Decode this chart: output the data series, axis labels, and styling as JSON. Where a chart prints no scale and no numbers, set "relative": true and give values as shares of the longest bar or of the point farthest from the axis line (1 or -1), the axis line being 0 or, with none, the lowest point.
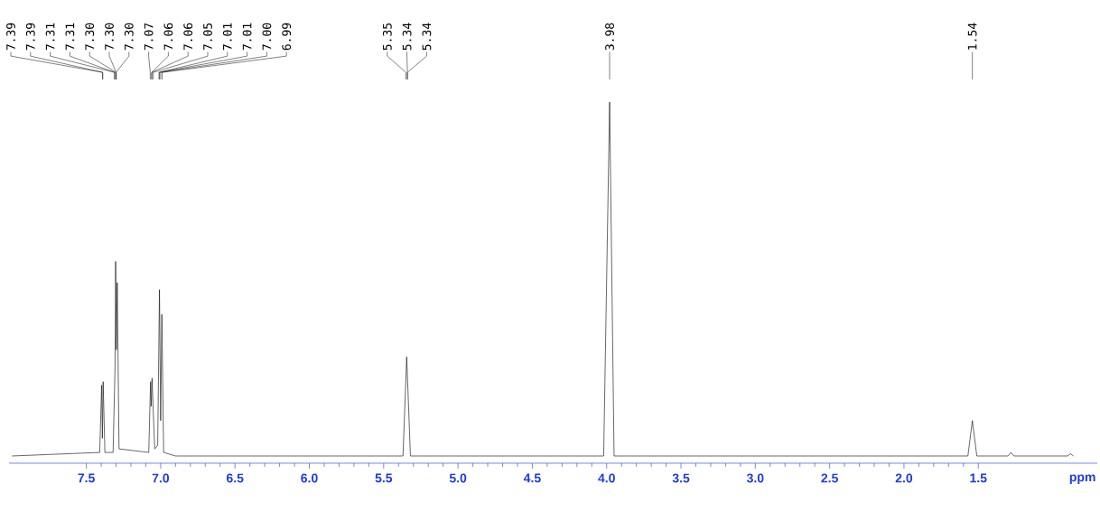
{
  "chart_data": {
    "type": "line",
    "relative": true,
    "xlabel": "ppm",
    "xlim": [
      8.02,
      0.7
    ],
    "xticks": [
      7.5,
      {
        "value": 7.0,
        "label": "7.0"
      },
      6.5,
      {
        "value": 6.0,
        "label": "6.0"
      },
      5.5,
      {
        "value": 5.0,
        "label": "5.0"
      },
      4.5,
      {
        "value": 4.0,
        "label": "4.0"
      },
      3.5,
      {
        "value": 3.0,
        "label": "3.0"
      },
      2.5,
      {
        "value": 2.0,
        "label": "2.0"
      },
      1.5
    ],
    "marker": "none",
    "line_style": "solid",
    "tick_labels": "x",
    "series": [
      {
        "color": "#000000",
        "x": [
          8.0,
          7.41,
          7.397,
          7.392,
          7.387,
          7.375,
          7.32,
          7.307,
          7.303,
          7.298,
          7.292,
          7.28,
          7.08,
          7.068,
          7.064,
          7.058,
          7.052,
          7.04,
          7.02,
          7.008,
          7.0,
          6.992,
          6.98,
          6.9,
          5.37,
          5.345,
          5.32,
          4.02,
          3.98,
          3.95,
          1.57,
          1.54,
          1.51,
          1.3,
          1.28,
          1.26,
          0.9,
          0.88,
          0.86
        ],
        "values": [
          0,
          0.01,
          0.2,
          0.05,
          0.21,
          0.01,
          0.01,
          0.25,
          0.55,
          0.3,
          0.49,
          0.02,
          0.01,
          0.21,
          0.14,
          0.22,
          0.15,
          0.02,
          0.03,
          0.47,
          0.1,
          0.4,
          0.01,
          0,
          0,
          0.28,
          0,
          0,
          1,
          0,
          0,
          0.1,
          0,
          0,
          0.01,
          0,
          0,
          0.006,
          0
        ]
      }
    ],
    "annotations": [
      {
        "text": "7.39",
        "x": 7.39
      },
      {
        "text": "7.39",
        "x": 7.39
      },
      {
        "text": "7.31",
        "x": 7.31
      },
      {
        "text": "7.31",
        "x": 7.31
      },
      {
        "text": "7.30",
        "x": 7.3
      },
      {
        "text": "7.30",
        "x": 7.3
      },
      {
        "text": "7.30",
        "x": 7.3
      },
      {
        "text": "7.07",
        "x": 7.07
      },
      {
        "text": "7.06",
        "x": 7.06
      },
      {
        "text": "7.06",
        "x": 7.06
      },
      {
        "text": "7.05",
        "x": 7.05
      },
      {
        "text": "7.01",
        "x": 7.01
      },
      {
        "text": "7.01",
        "x": 7.01
      },
      {
        "text": "7.00",
        "x": 7.0
      },
      {
        "text": "6.99",
        "x": 6.99
      },
      {
        "text": "5.35",
        "x": 5.35
      },
      {
        "text": "5.34",
        "x": 5.34
      },
      {
        "text": "5.34",
        "x": 5.34
      },
      {
        "text": "3.98",
        "x": 3.98
      },
      {
        "text": "1.54",
        "x": 1.54
      }
    ]
  }
}
